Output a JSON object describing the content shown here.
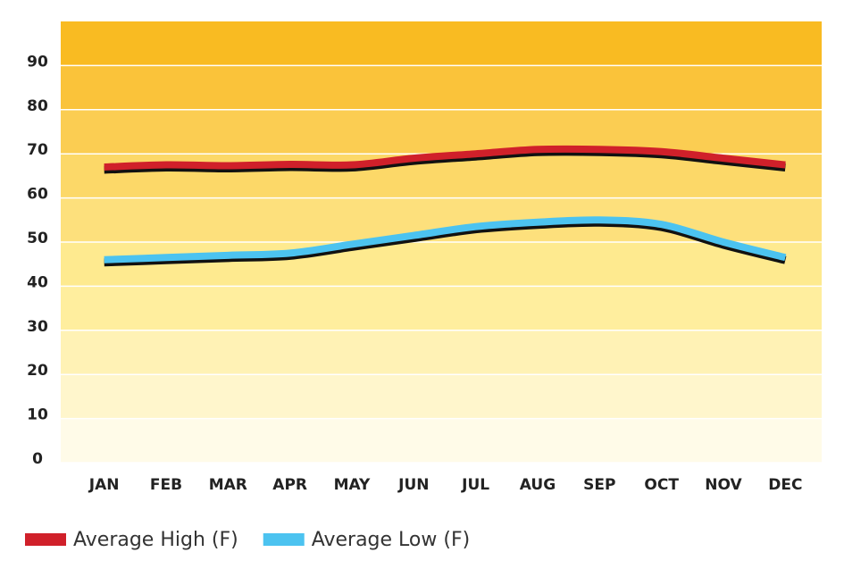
{
  "chart_data": {
    "type": "line",
    "categories": [
      "JAN",
      "FEB",
      "MAR",
      "APR",
      "MAY",
      "JUN",
      "JUL",
      "AUG",
      "SEP",
      "OCT",
      "NOV",
      "DEC"
    ],
    "series": [
      {
        "name": "Average High (F)",
        "color": "#d0202a",
        "values": [
          67,
          67.5,
          67.3,
          67.6,
          67.5,
          69,
          70,
          71,
          71,
          70.5,
          69,
          67.5
        ]
      },
      {
        "name": "Average Low (F)",
        "color": "#4cc3f0",
        "values": [
          46,
          46.5,
          47,
          47.5,
          49.5,
          51.5,
          53.5,
          54.5,
          55,
          54,
          50,
          46.5
        ]
      }
    ],
    "ylim": [
      0,
      100
    ],
    "yticks": [
      0,
      10,
      20,
      30,
      40,
      50,
      60,
      70,
      80,
      90
    ],
    "grid": true
  }
}
